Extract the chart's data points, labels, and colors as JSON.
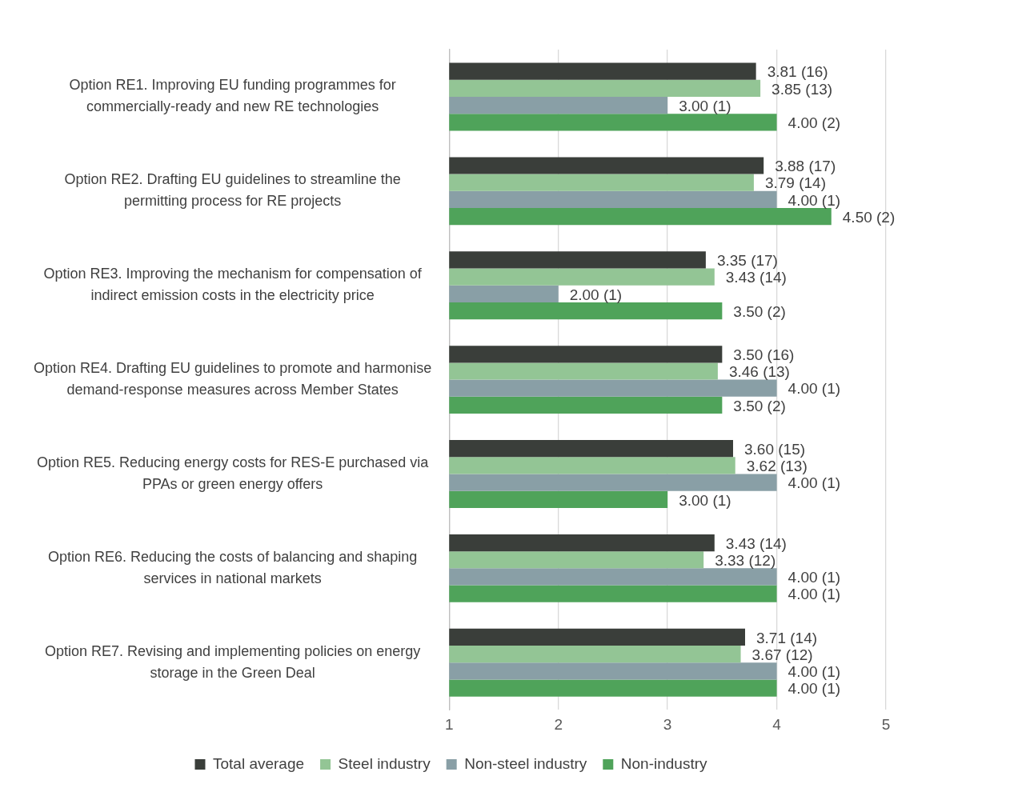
{
  "chart_data": {
    "type": "bar",
    "orientation": "horizontal",
    "categories": [
      "Option RE1. Improving EU funding programmes for commercially-ready and new RE technologies",
      "Option RE2. Drafting EU guidelines to streamline the permitting process for RE projects",
      "Option RE3. Improving the mechanism for compensation of indirect emission costs in the electricity price",
      "Option RE4. Drafting EU guidelines to promote and harmonise demand-response measures across Member States",
      "Option RE5. Reducing energy costs for RES-E purchased via PPAs or green energy offers",
      "Option RE6. Reducing the costs of balancing and shaping services in national markets",
      "Option RE7. Revising and implementing policies on energy storage in the Green Deal"
    ],
    "series": [
      {
        "name": "Total average",
        "color": "#3a3e3a",
        "values": [
          3.81,
          3.88,
          3.35,
          3.5,
          3.6,
          3.43,
          3.71
        ],
        "value_labels": [
          "3.81 (16)",
          "3.88 (17)",
          "3.35 (17)",
          "3.50 (16)",
          "3.60 (15)",
          "3.43 (14)",
          "3.71 (14)"
        ]
      },
      {
        "name": "Steel industry",
        "color": "#93c595",
        "values": [
          3.85,
          3.79,
          3.43,
          3.46,
          3.62,
          3.33,
          3.67
        ],
        "value_labels": [
          "3.85 (13)",
          "3.79 (14)",
          "3.43 (14)",
          "3.46 (13)",
          "3.62 (13)",
          "3.33 (12)",
          "3.67 (12)"
        ]
      },
      {
        "name": "Non-steel industry",
        "color": "#899fa6",
        "values": [
          3.0,
          4.0,
          2.0,
          4.0,
          4.0,
          4.0,
          4.0
        ],
        "value_labels": [
          "3.00 (1)",
          "4.00 (1)",
          "2.00 (1)",
          "4.00 (1)",
          "4.00 (1)",
          "4.00 (1)",
          "4.00 (1)"
        ]
      },
      {
        "name": "Non-industry",
        "color": "#4fa35a",
        "values": [
          4.0,
          4.5,
          3.5,
          3.5,
          3.0,
          4.0,
          4.0
        ],
        "value_labels": [
          "4.00 (2)",
          "4.50 (2)",
          "3.50 (2)",
          "3.50 (2)",
          "3.00 (1)",
          "4.00 (1)",
          "4.00 (1)"
        ]
      }
    ],
    "xlim": [
      1,
      5
    ],
    "xticks": [
      1,
      2,
      3,
      4,
      5
    ],
    "grid": "x",
    "legend": "bottom"
  }
}
